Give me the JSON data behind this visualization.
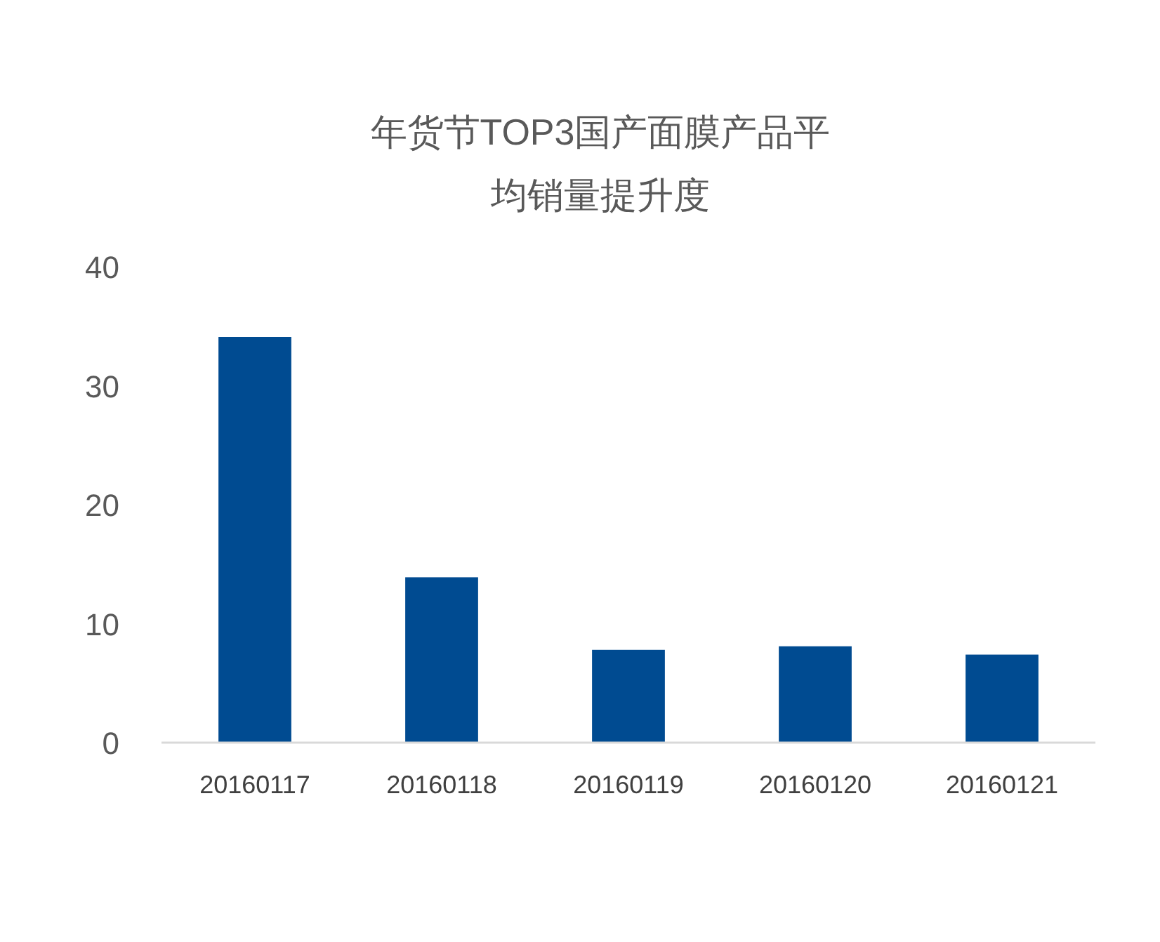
{
  "chart_data": {
    "type": "bar",
    "title": "年货节TOP3国产面膜产品平均销量提升度",
    "categories": [
      "20160117",
      "20160118",
      "20160119",
      "20160120",
      "20160121"
    ],
    "values": [
      34.1,
      13.9,
      7.8,
      8.1,
      7.4
    ],
    "color": "#004b91",
    "ylim": [
      0,
      40
    ],
    "yticks": [
      0,
      10,
      20,
      30,
      40
    ],
    "grid": false
  }
}
